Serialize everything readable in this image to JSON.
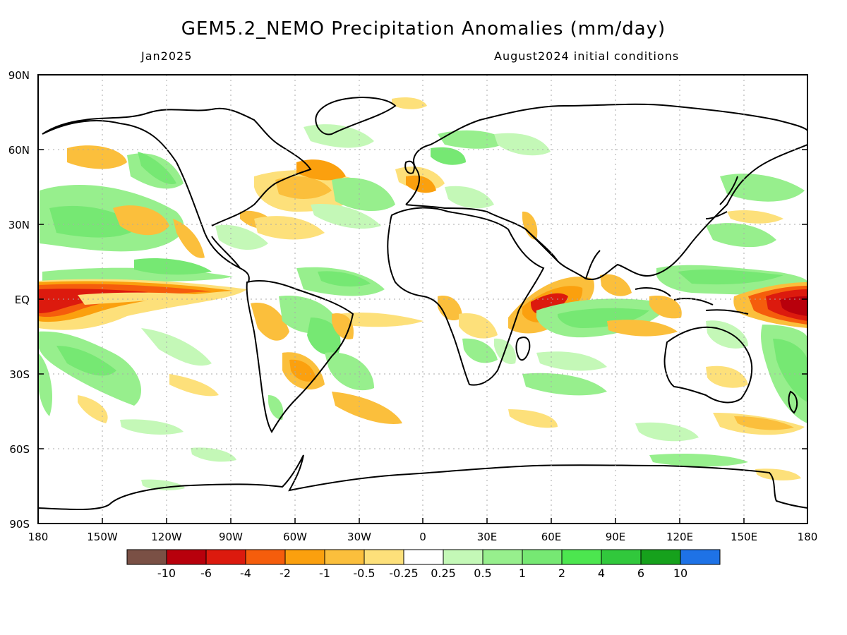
{
  "title": "GEM5.2_NEMO Precipitation Anomalies (mm/day)",
  "subtitle_left": "Jan2025",
  "subtitle_right": "August2024 initial conditions",
  "map": {
    "lat_labels": [
      "90N",
      "60N",
      "30N",
      "EQ",
      "30S",
      "60S",
      "90S"
    ],
    "lon_labels": [
      "180",
      "150W",
      "120W",
      "90W",
      "60W",
      "30W",
      "0",
      "30E",
      "60E",
      "90E",
      "120E",
      "150E",
      "180"
    ],
    "grid": "dotted"
  },
  "colorbar": {
    "labels": [
      "-10",
      "-6",
      "-4",
      "-2",
      "-1",
      "-0.5",
      "-0.25",
      "0.25",
      "0.5",
      "1",
      "2",
      "4",
      "6",
      "10"
    ],
    "colors": [
      "#7a5045",
      "#b8000c",
      "#dc1a0e",
      "#f55d0c",
      "#fba00e",
      "#fbbf3c",
      "#fde07a",
      "#ffffff",
      "#c4f8b7",
      "#97ef8d",
      "#76e873",
      "#4ce64f",
      "#31c83c",
      "#16a11c",
      "#1e72e6"
    ]
  },
  "colors": {
    "frame": "#000000",
    "grid": "#aaaaaa"
  }
}
